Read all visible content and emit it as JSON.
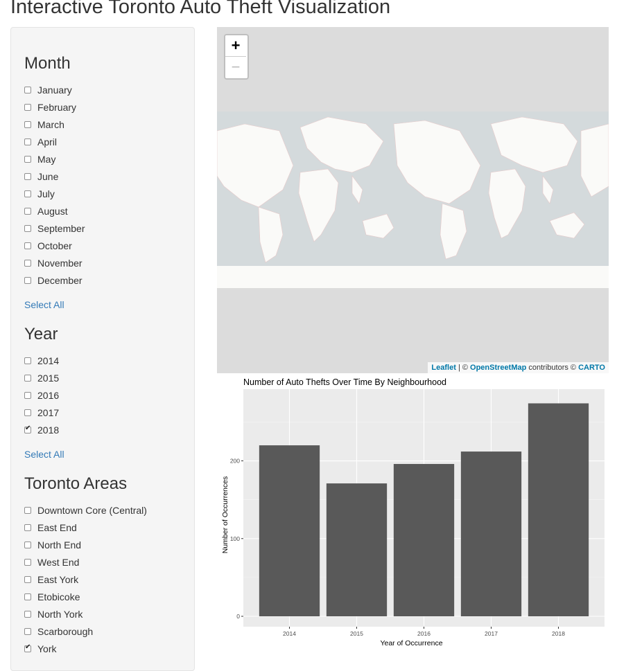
{
  "page": {
    "title": "Interactive Toronto Auto Theft Visualization"
  },
  "sidebar": {
    "month": {
      "title": "Month",
      "select_all": "Select All",
      "options": [
        {
          "label": "January",
          "checked": false
        },
        {
          "label": "February",
          "checked": false
        },
        {
          "label": "March",
          "checked": false
        },
        {
          "label": "April",
          "checked": false
        },
        {
          "label": "May",
          "checked": false
        },
        {
          "label": "June",
          "checked": false
        },
        {
          "label": "July",
          "checked": false
        },
        {
          "label": "August",
          "checked": false
        },
        {
          "label": "September",
          "checked": false
        },
        {
          "label": "October",
          "checked": false
        },
        {
          "label": "November",
          "checked": false
        },
        {
          "label": "December",
          "checked": false
        }
      ]
    },
    "year": {
      "title": "Year",
      "select_all": "Select All",
      "options": [
        {
          "label": "2014",
          "checked": false
        },
        {
          "label": "2015",
          "checked": false
        },
        {
          "label": "2016",
          "checked": false
        },
        {
          "label": "2017",
          "checked": false
        },
        {
          "label": "2018",
          "checked": true
        }
      ]
    },
    "areas": {
      "title": "Toronto Areas",
      "options": [
        {
          "label": "Downtown Core (Central)",
          "checked": false
        },
        {
          "label": "East End",
          "checked": false
        },
        {
          "label": "North End",
          "checked": false
        },
        {
          "label": "West End",
          "checked": false
        },
        {
          "label": "East York",
          "checked": false
        },
        {
          "label": "Etobicoke",
          "checked": false
        },
        {
          "label": "North York",
          "checked": false
        },
        {
          "label": "Scarborough",
          "checked": false
        },
        {
          "label": "York",
          "checked": true
        }
      ]
    }
  },
  "map": {
    "zoom_in": "+",
    "zoom_out": "−",
    "attribution": {
      "leaflet": "Leaflet",
      "sep": " | © ",
      "osm": "OpenStreetMap",
      "contrib": " contributors © ",
      "carto": "CARTO"
    }
  },
  "chart_data": {
    "type": "bar",
    "title": "Number of Auto Thefts Over Time By Neighbourhood",
    "xlabel": "Year of Occurrence",
    "ylabel": "Number of Occurrences",
    "categories": [
      "2014",
      "2015",
      "2016",
      "2017",
      "2018"
    ],
    "values": [
      220,
      171,
      196,
      212,
      274
    ],
    "ylim": [
      0,
      290
    ],
    "yticks": [
      0,
      100,
      200
    ],
    "bar_color": "#595959",
    "panel_color": "#ebebeb",
    "grid": true,
    "legend": "none"
  }
}
